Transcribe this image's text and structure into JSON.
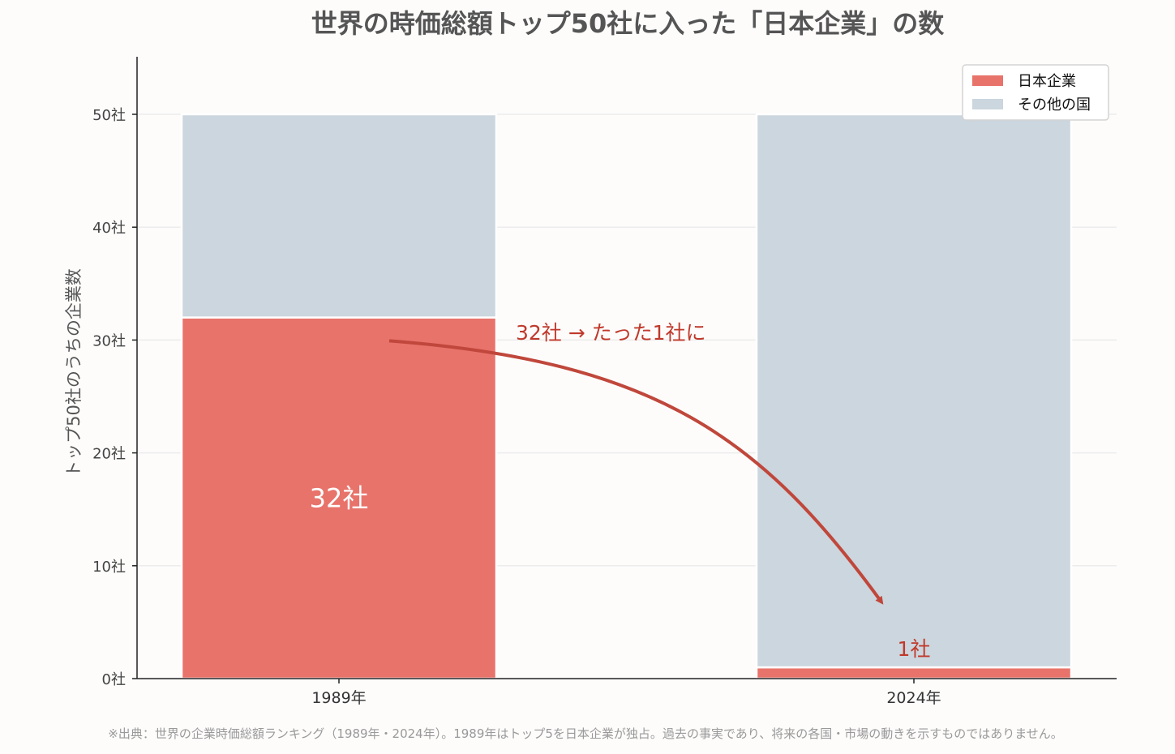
{
  "chart_data": {
    "type": "bar",
    "stacked": true,
    "title": "世界の時価総額トップ50社に入った「日本企業」の数",
    "ylabel": "トップ50社のうちの企業数",
    "xlabel": "",
    "categories": [
      "1989年",
      "2024年"
    ],
    "series": [
      {
        "name": "日本企業",
        "values": [
          32,
          1
        ],
        "color": "#e8736b"
      },
      {
        "name": "その他の国",
        "values": [
          18,
          49
        ],
        "color": "#cbd6de"
      }
    ],
    "ylim": [
      0,
      55
    ],
    "yticks": [
      0,
      10,
      20,
      30,
      40,
      50
    ],
    "ytick_labels": [
      "0社",
      "10社",
      "20社",
      "30社",
      "40社",
      "50社"
    ],
    "grid": "horizontal",
    "legend_position": "top-right",
    "bar_labels": [
      "32社",
      "1社"
    ],
    "annotation": {
      "text": "32社 → たった1社に",
      "arrow_from": {
        "category": "1989年",
        "y": 30
      },
      "arrow_to": {
        "category": "2024年",
        "y": 6.5
      },
      "color": "#c0392b"
    },
    "source_note": "※出典：世界の企業時価総額ランキング（1989年・2024年）。1989年はトップ5を日本企業が独占。過去の事実であり、将来の各国・市場の動きを示すものではありません。"
  }
}
